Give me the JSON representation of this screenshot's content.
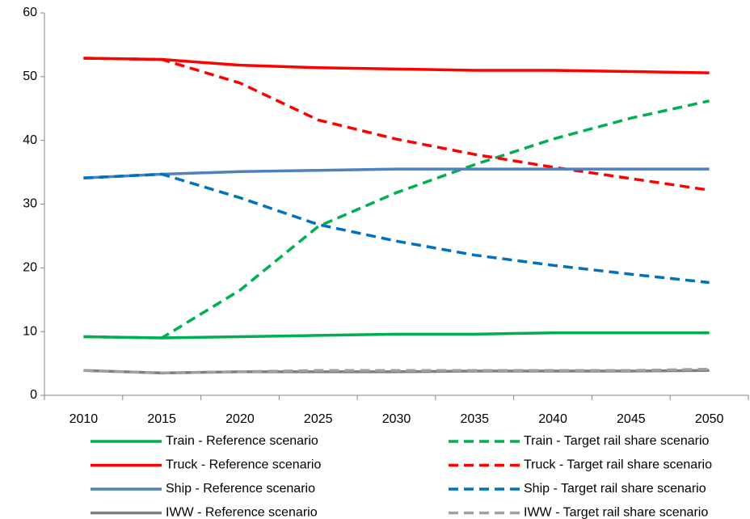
{
  "chart_data": {
    "type": "line",
    "categories": [
      "2010",
      "2015",
      "2020",
      "2025",
      "2030",
      "2035",
      "2040",
      "2045",
      "2050"
    ],
    "series": [
      {
        "name": "Train - Reference scenario",
        "color": "#00b050",
        "dashed": false,
        "values": [
          9.2,
          9.0,
          9.2,
          9.4,
          9.6,
          9.6,
          9.8,
          9.8,
          9.8
        ]
      },
      {
        "name": "Train - Target rail share scenario",
        "color": "#00b050",
        "dashed": true,
        "values": [
          9.2,
          9.0,
          16.5,
          26.5,
          31.8,
          36.2,
          40.2,
          43.5,
          46.2
        ]
      },
      {
        "name": "Truck - Reference scenario",
        "color": "#ff0000",
        "dashed": false,
        "values": [
          52.9,
          52.7,
          51.8,
          51.4,
          51.2,
          51.0,
          51.0,
          50.8,
          50.6
        ]
      },
      {
        "name": "Truck - Target rail share scenario",
        "color": "#ff0000",
        "dashed": true,
        "values": [
          52.9,
          52.7,
          49.0,
          43.2,
          40.2,
          37.8,
          35.8,
          34.0,
          32.2
        ]
      },
      {
        "name": "Ship - Reference scenario",
        "color": "#4f81bd",
        "dashed": false,
        "values": [
          34.1,
          34.7,
          35.1,
          35.3,
          35.5,
          35.5,
          35.5,
          35.5,
          35.5
        ]
      },
      {
        "name": "Ship - Target rail share scenario",
        "color": "#0070c0",
        "dashed": true,
        "values": [
          34.1,
          34.7,
          31.0,
          26.8,
          24.2,
          22.0,
          20.4,
          19.0,
          17.7
        ]
      },
      {
        "name": "IWW - Reference scenario",
        "color": "#7f7f7f",
        "dashed": false,
        "values": [
          3.9,
          3.5,
          3.7,
          3.7,
          3.7,
          3.8,
          3.8,
          3.8,
          3.9
        ]
      },
      {
        "name": "IWW - Target rail share scenario",
        "color": "#a0a0a0",
        "dashed": true,
        "values": [
          3.9,
          3.5,
          3.7,
          3.9,
          3.9,
          3.9,
          3.9,
          3.9,
          4.1
        ]
      }
    ],
    "ylim": [
      0,
      60
    ],
    "yticks": [
      0,
      10,
      20,
      30,
      40,
      50,
      60
    ],
    "grid": false
  }
}
